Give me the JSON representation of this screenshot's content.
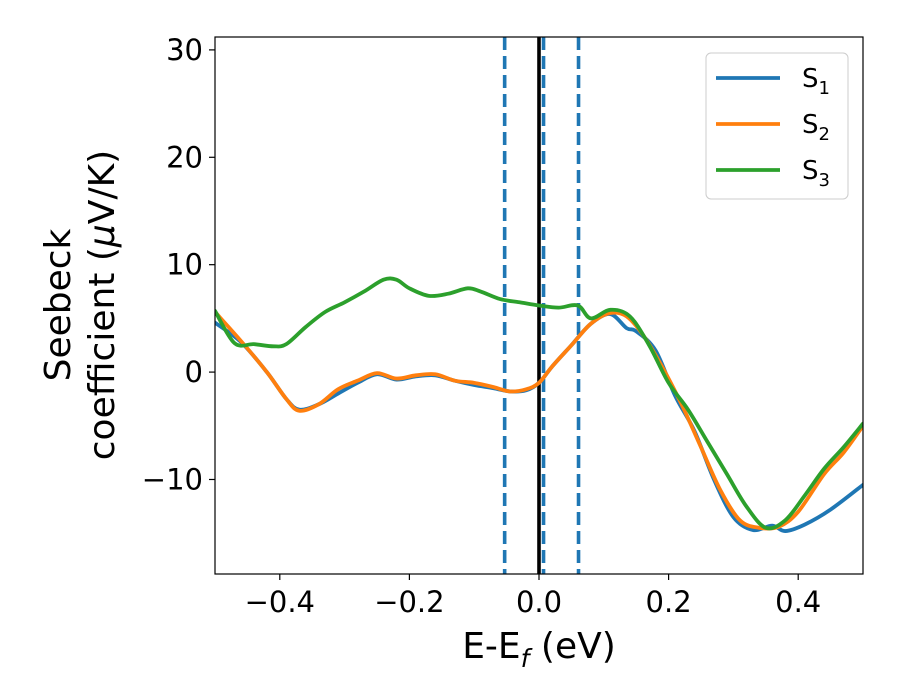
{
  "chart_data": {
    "type": "line",
    "title": "",
    "xlabel": {
      "main": "E-E",
      "sub": "f",
      "tail": " (eV)"
    },
    "ylabel": {
      "line1": "Seebeck",
      "line2_pre": "coefficient  (",
      "line2_mu": "μ",
      "line2_post": "V/K)"
    },
    "xlim": [
      -0.5,
      0.5
    ],
    "ylim": [
      -18.8,
      31.2
    ],
    "xticks": [
      {
        "value": -0.4,
        "label": "−0.4"
      },
      {
        "value": -0.2,
        "label": "−0.2"
      },
      {
        "value": 0.0,
        "label": "0.0"
      },
      {
        "value": 0.2,
        "label": "0.2"
      },
      {
        "value": 0.4,
        "label": "0.4"
      }
    ],
    "yticks": [
      {
        "value": -10,
        "label": "−10"
      },
      {
        "value": 0,
        "label": "0"
      },
      {
        "value": 10,
        "label": "10"
      },
      {
        "value": 20,
        "label": "20"
      },
      {
        "value": 30,
        "label": "30"
      }
    ],
    "grid": false,
    "legend_position": "top-right",
    "series": [
      {
        "name": "S",
        "sub": "1",
        "color": "#1f77b4",
        "points": [
          [
            -0.5,
            4.6
          ],
          [
            -0.46,
            2.8
          ],
          [
            -0.42,
            0.0
          ],
          [
            -0.39,
            -2.5
          ],
          [
            -0.37,
            -3.5
          ],
          [
            -0.34,
            -3.0
          ],
          [
            -0.31,
            -2.0
          ],
          [
            -0.28,
            -1.0
          ],
          [
            -0.25,
            -0.2
          ],
          [
            -0.22,
            -0.7
          ],
          [
            -0.19,
            -0.4
          ],
          [
            -0.16,
            -0.3
          ],
          [
            -0.13,
            -0.8
          ],
          [
            -0.1,
            -1.2
          ],
          [
            -0.07,
            -1.5
          ],
          [
            -0.045,
            -1.8
          ],
          [
            -0.02,
            -1.7
          ],
          [
            0.0,
            -1.0
          ],
          [
            0.02,
            0.5
          ],
          [
            0.05,
            2.5
          ],
          [
            0.08,
            4.5
          ],
          [
            0.11,
            5.4
          ],
          [
            0.135,
            4.1
          ],
          [
            0.15,
            3.8
          ],
          [
            0.18,
            2.0
          ],
          [
            0.21,
            -2.2
          ],
          [
            0.24,
            -5.5
          ],
          [
            0.27,
            -10.0
          ],
          [
            0.3,
            -13.5
          ],
          [
            0.33,
            -14.7
          ],
          [
            0.36,
            -14.3
          ],
          [
            0.38,
            -14.8
          ],
          [
            0.41,
            -14.2
          ],
          [
            0.45,
            -12.8
          ],
          [
            0.5,
            -10.5
          ]
        ]
      },
      {
        "name": "S",
        "sub": "2",
        "color": "#ff7f0e",
        "points": [
          [
            -0.5,
            5.6
          ],
          [
            -0.46,
            2.9
          ],
          [
            -0.42,
            0.0
          ],
          [
            -0.39,
            -2.5
          ],
          [
            -0.37,
            -3.6
          ],
          [
            -0.34,
            -3.0
          ],
          [
            -0.31,
            -1.6
          ],
          [
            -0.28,
            -0.8
          ],
          [
            -0.25,
            -0.1
          ],
          [
            -0.22,
            -0.6
          ],
          [
            -0.19,
            -0.3
          ],
          [
            -0.16,
            -0.2
          ],
          [
            -0.13,
            -0.8
          ],
          [
            -0.1,
            -1.0
          ],
          [
            -0.07,
            -1.4
          ],
          [
            -0.045,
            -1.8
          ],
          [
            -0.02,
            -1.6
          ],
          [
            0.0,
            -1.0
          ],
          [
            0.02,
            0.5
          ],
          [
            0.05,
            2.5
          ],
          [
            0.08,
            4.5
          ],
          [
            0.11,
            5.5
          ],
          [
            0.135,
            5.2
          ],
          [
            0.16,
            3.5
          ],
          [
            0.19,
            0.5
          ],
          [
            0.22,
            -3.0
          ],
          [
            0.25,
            -7.0
          ],
          [
            0.28,
            -11.0
          ],
          [
            0.31,
            -13.8
          ],
          [
            0.34,
            -14.5
          ],
          [
            0.37,
            -14.4
          ],
          [
            0.4,
            -13.0
          ],
          [
            0.44,
            -9.5
          ],
          [
            0.47,
            -7.5
          ],
          [
            0.5,
            -5.0
          ]
        ]
      },
      {
        "name": "S",
        "sub": "3",
        "color": "#2ca02c",
        "points": [
          [
            -0.5,
            5.7
          ],
          [
            -0.47,
            2.7
          ],
          [
            -0.44,
            2.6
          ],
          [
            -0.41,
            2.4
          ],
          [
            -0.39,
            2.6
          ],
          [
            -0.36,
            4.2
          ],
          [
            -0.33,
            5.6
          ],
          [
            -0.3,
            6.5
          ],
          [
            -0.27,
            7.5
          ],
          [
            -0.24,
            8.6
          ],
          [
            -0.22,
            8.6
          ],
          [
            -0.2,
            7.8
          ],
          [
            -0.17,
            7.1
          ],
          [
            -0.14,
            7.3
          ],
          [
            -0.11,
            7.8
          ],
          [
            -0.09,
            7.5
          ],
          [
            -0.06,
            6.8
          ],
          [
            -0.03,
            6.5
          ],
          [
            0.0,
            6.2
          ],
          [
            0.03,
            6.0
          ],
          [
            0.06,
            6.2
          ],
          [
            0.08,
            5.0
          ],
          [
            0.11,
            5.8
          ],
          [
            0.14,
            5.2
          ],
          [
            0.17,
            2.5
          ],
          [
            0.2,
            -1.0
          ],
          [
            0.23,
            -3.5
          ],
          [
            0.26,
            -6.5
          ],
          [
            0.29,
            -9.5
          ],
          [
            0.32,
            -12.5
          ],
          [
            0.35,
            -14.5
          ],
          [
            0.38,
            -13.8
          ],
          [
            0.41,
            -11.5
          ],
          [
            0.44,
            -9.0
          ],
          [
            0.47,
            -7.0
          ],
          [
            0.5,
            -4.8
          ]
        ]
      }
    ],
    "vlines": [
      {
        "x": -0.053,
        "color": "#1f77b4",
        "style": "dashed"
      },
      {
        "x": 0.0,
        "color": "#000000",
        "style": "solid"
      },
      {
        "x": 0.007,
        "color": "#1f77b4",
        "style": "dashed"
      },
      {
        "x": 0.061,
        "color": "#1f77b4",
        "style": "dashed"
      }
    ]
  }
}
